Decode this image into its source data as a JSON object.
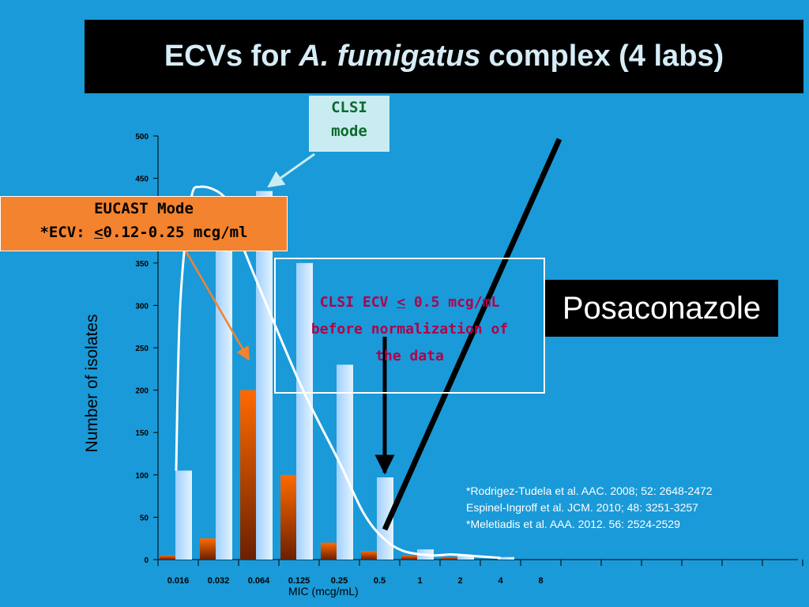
{
  "title": {
    "part1": "ECVs for",
    "italic": "A. fumigatus",
    "part2": "complex (4 labs)"
  },
  "clsi_mode_box": {
    "line1": "CLSI",
    "line2": "mode"
  },
  "eucast_box": {
    "line1": "EUCAST Mode",
    "line2_prefix": "*ECV: ",
    "line2_underlined": "<",
    "line2_suffix": "0.12-0.25 mcg/ml"
  },
  "clsi_ecv_box": {
    "line1_prefix": "CLSI ECV ",
    "line1_underlined": "<",
    "line1_suffix": " 0.5 mcg/mL",
    "line2": "before normalization of",
    "line3": "the data"
  },
  "drug_label": "Posaconazole",
  "references": [
    "*Rodrigez-Tudela et al. AAC. 2008; 52: 2648-2472",
    "Espinel-Ingroff et al.  JCM.  2010; 48: 3251-3257",
    "*Meletiadis et al. AAA. 2012. 56: 2524-2529"
  ],
  "chart_data": {
    "type": "bar",
    "xlabel": "MIC (mcg/mL)",
    "ylabel": "Number of isolates",
    "ylim": [
      0,
      500
    ],
    "yticks": [
      0,
      50,
      100,
      150,
      200,
      250,
      300,
      350,
      400,
      450,
      500
    ],
    "categories": [
      "0.016",
      "0.032",
      "0.064",
      "0.125",
      "0.25",
      "0.5",
      "1",
      "2",
      "4",
      "8"
    ],
    "series": [
      {
        "name": "EUCAST",
        "color": "#f06a00",
        "values": [
          5,
          25,
          200,
          100,
          20,
          10,
          5,
          3,
          0,
          0
        ]
      },
      {
        "name": "CLSI",
        "color": "#a8d8ff",
        "values": [
          105,
          395,
          435,
          350,
          230,
          97,
          12,
          5,
          3,
          0
        ]
      }
    ],
    "fit_curve": [
      [
        -0.05,
        105
      ],
      [
        0.05,
        300
      ],
      [
        0.3,
        420
      ],
      [
        0.55,
        440
      ],
      [
        1.2,
        425
      ],
      [
        1.6,
        370
      ],
      [
        2.2,
        300
      ],
      [
        3.1,
        200
      ],
      [
        4.0,
        115
      ],
      [
        4.6,
        55
      ],
      [
        5.1,
        25
      ],
      [
        5.6,
        10
      ],
      [
        6.3,
        5
      ],
      [
        6.8,
        6
      ],
      [
        7.4,
        4
      ],
      [
        8.0,
        2
      ]
    ]
  }
}
